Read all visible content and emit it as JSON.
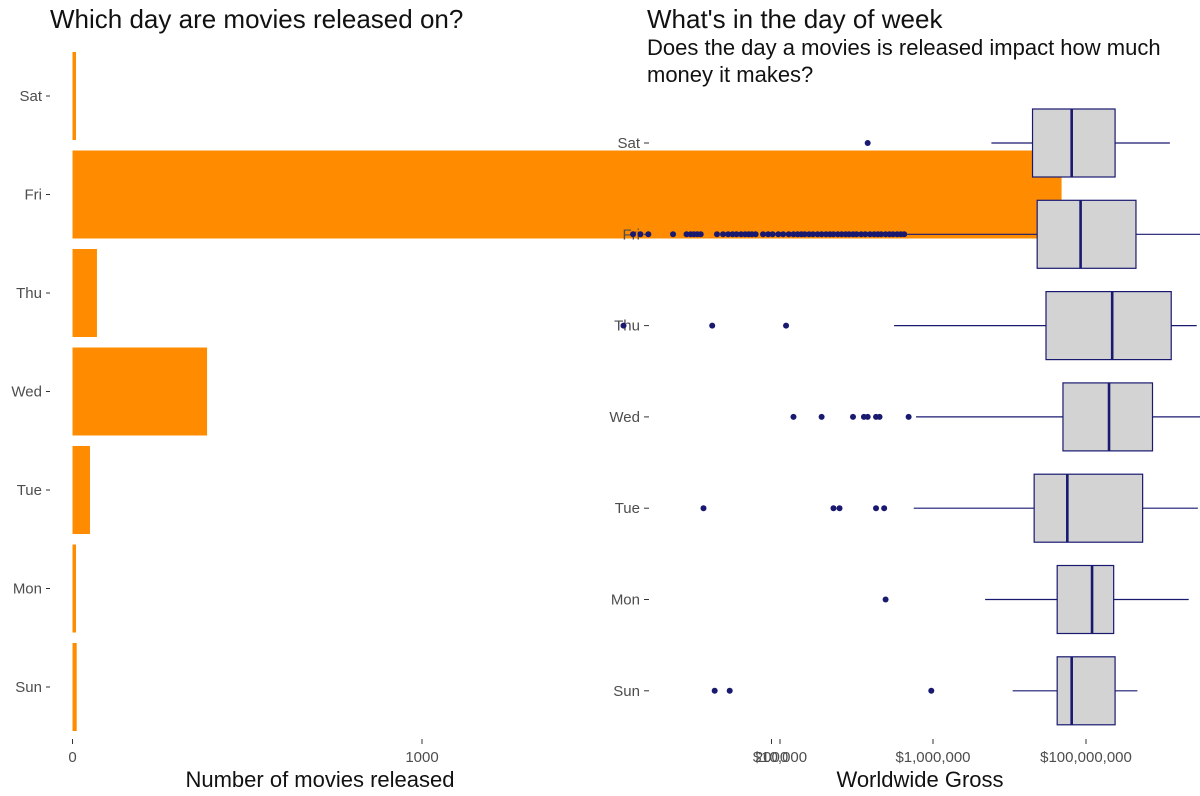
{
  "chart_data": [
    {
      "type": "bar",
      "orientation": "horizontal",
      "title": "Which day are movies released on?",
      "xlabel": "Number of movies released",
      "ylabel": "",
      "categories": [
        "Sat",
        "Fri",
        "Thu",
        "Wed",
        "Tue",
        "Mon",
        "Sun"
      ],
      "values": [
        10,
        2830,
        70,
        385,
        50,
        8,
        12
      ],
      "xlim": [
        -50,
        2830
      ],
      "xticks": [
        0,
        1000,
        2000
      ],
      "xtick_labels": [
        "0",
        "1000",
        "2000"
      ],
      "bar_color": "#FF8C00",
      "grid": false
    },
    {
      "type": "boxplot",
      "orientation": "horizontal",
      "title": "What's in the day of week",
      "subtitle": "Does the day a movies is released impact how much money it makes?",
      "xlabel": "Worldwide Gross",
      "ylabel": "",
      "x_scale": "log10",
      "xlim": [
        60,
        6000000000
      ],
      "xticks": [
        10000,
        1000000,
        100000000
      ],
      "xtick_labels": [
        "$10,000",
        "$1,000,000",
        "$100,000,000"
      ],
      "categories": [
        "Sat",
        "Fri",
        "Thu",
        "Wed",
        "Tue",
        "Mon",
        "Sun"
      ],
      "box_fill": "#D3D3D3",
      "line_color": "#191970",
      "grid": false,
      "boxes": [
        {
          "day": "Sat",
          "whisker_low": 5800000,
          "q1": 20000000,
          "median": 65000000,
          "q3": 240000000,
          "whisker_high": 1250000000,
          "outliers": [
            140000
          ]
        },
        {
          "day": "Fri",
          "whisker_low": 460000,
          "q1": 23000000,
          "median": 85000000,
          "q3": 450000000,
          "whisker_high": 5500000000,
          "outliers": [
            120,
            150,
            190,
            400,
            600,
            680,
            750,
            830,
            920,
            1500,
            1800,
            2100,
            2400,
            2700,
            3100,
            3500,
            3900,
            4300,
            4800,
            6000,
            7000,
            8000,
            9500,
            11000,
            13000,
            15000,
            17000,
            19000,
            21000,
            24000,
            27000,
            31000,
            35000,
            40000,
            45000,
            50000,
            57000,
            64000,
            72000,
            80000,
            90000,
            100000,
            115000,
            130000,
            150000,
            170000,
            190000,
            210000,
            240000,
            270000,
            300000,
            340000,
            380000,
            420000
          ]
        },
        {
          "day": "Thu",
          "whisker_low": 310000,
          "q1": 30000000,
          "median": 220000000,
          "q3": 1300000000,
          "whisker_high": 2800000000,
          "outliers": [
            90,
            1300,
            12000
          ]
        },
        {
          "day": "Wed",
          "whisker_low": 600000,
          "q1": 50000000,
          "median": 200000000,
          "q3": 740000000,
          "whisker_high": 4200000000,
          "outliers": [
            15000,
            35000,
            90000,
            125000,
            140000,
            180000,
            200000,
            480000
          ]
        },
        {
          "day": "Tue",
          "whisker_low": 560000,
          "q1": 21000000,
          "median": 57000000,
          "q3": 550000000,
          "whisker_high": 2900000000,
          "outliers": [
            1000,
            50000,
            60000,
            180000,
            230000
          ]
        },
        {
          "day": "Mon",
          "whisker_low": 4800000,
          "q1": 42000000,
          "median": 120000000,
          "q3": 230000000,
          "whisker_high": 2200000000,
          "outliers": [
            240000
          ]
        },
        {
          "day": "Sun",
          "whisker_low": 11000000,
          "q1": 42000000,
          "median": 65000000,
          "q3": 240000000,
          "whisker_high": 470000000,
          "outliers": [
            1400,
            2200,
            950000
          ]
        }
      ]
    }
  ]
}
